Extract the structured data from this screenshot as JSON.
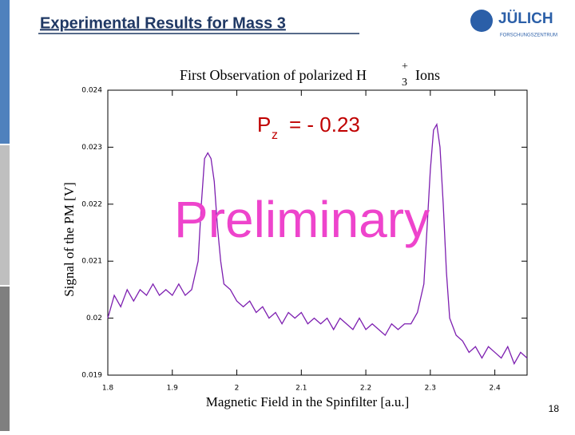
{
  "slide": {
    "title": "Experimental Results for Mass 3",
    "page_number": "18",
    "logo": "JÜLICH",
    "logo_subtitle": "FORSCHUNGSZENTRUM"
  },
  "chart_data": {
    "type": "line",
    "title_prefix": "First Observation of polarized H",
    "title_superscript": "+",
    "title_subscript": "3",
    "title_suffix": "Ions",
    "x_label": "Magnetic Field in the Spinfilter [a.u.]",
    "y_label": "Signal of the PM [V]",
    "annotation_main": "P",
    "annotation_sub": "z",
    "annotation_rest": "= - 0.23",
    "watermark": "Preliminary",
    "xlim": [
      1.8,
      2.45
    ],
    "ylim": [
      0.019,
      0.024
    ],
    "xticks": [
      1.8,
      1.9,
      2,
      2.1,
      2.2,
      2.3,
      2.4
    ],
    "yticks": [
      0.019,
      0.02,
      0.021,
      0.022,
      0.023,
      0.024
    ],
    "series": [
      {
        "color": "#7d1fb0",
        "x": [
          1.8,
          1.81,
          1.82,
          1.83,
          1.84,
          1.85,
          1.86,
          1.87,
          1.88,
          1.89,
          1.9,
          1.91,
          1.92,
          1.93,
          1.94,
          1.945,
          1.95,
          1.955,
          1.96,
          1.965,
          1.97,
          1.975,
          1.98,
          1.99,
          2.0,
          2.01,
          2.02,
          2.03,
          2.04,
          2.05,
          2.06,
          2.07,
          2.08,
          2.09,
          2.1,
          2.11,
          2.12,
          2.13,
          2.14,
          2.15,
          2.16,
          2.17,
          2.18,
          2.19,
          2.2,
          2.21,
          2.22,
          2.23,
          2.24,
          2.25,
          2.26,
          2.27,
          2.28,
          2.29,
          2.295,
          2.3,
          2.305,
          2.31,
          2.315,
          2.32,
          2.325,
          2.33,
          2.34,
          2.35,
          2.36,
          2.37,
          2.38,
          2.39,
          2.4,
          2.41,
          2.42,
          2.43,
          2.44,
          2.45
        ],
        "values": [
          0.02,
          0.0204,
          0.0202,
          0.0205,
          0.0203,
          0.0205,
          0.0204,
          0.0206,
          0.0204,
          0.0205,
          0.0204,
          0.0206,
          0.0204,
          0.0205,
          0.021,
          0.022,
          0.0228,
          0.0229,
          0.0228,
          0.0224,
          0.0216,
          0.021,
          0.0206,
          0.0205,
          0.0203,
          0.0202,
          0.0203,
          0.0201,
          0.0202,
          0.02,
          0.0201,
          0.0199,
          0.0201,
          0.02,
          0.0201,
          0.0199,
          0.02,
          0.0199,
          0.02,
          0.0198,
          0.02,
          0.0199,
          0.0198,
          0.02,
          0.0198,
          0.0199,
          0.0198,
          0.0197,
          0.0199,
          0.0198,
          0.0199,
          0.0199,
          0.0201,
          0.0206,
          0.0216,
          0.0226,
          0.0233,
          0.0234,
          0.023,
          0.022,
          0.0208,
          0.02,
          0.0197,
          0.0196,
          0.0194,
          0.0195,
          0.0193,
          0.0195,
          0.0194,
          0.0193,
          0.0195,
          0.0192,
          0.0194,
          0.0193
        ]
      }
    ]
  }
}
